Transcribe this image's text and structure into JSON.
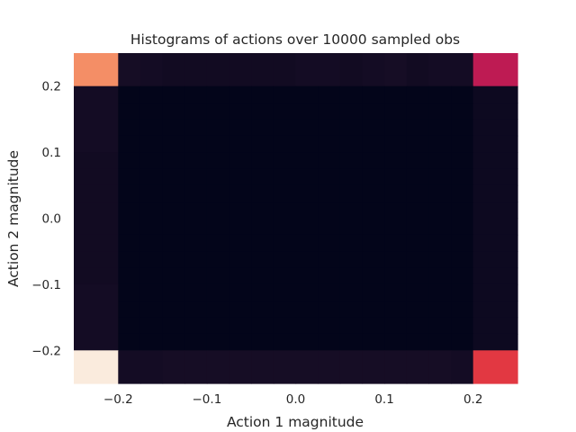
{
  "chart_data": {
    "type": "heatmap",
    "title": "Histograms of actions over 10000 sampled obs",
    "xlabel": "Action 1 magnitude",
    "ylabel": "Action 2 magnitude",
    "xlim": [
      -0.25,
      0.25
    ],
    "ylim": [
      -0.25,
      0.25
    ],
    "x_ticks": [
      -0.2,
      -0.1,
      0.0,
      0.1,
      0.2
    ],
    "x_tick_labels": [
      "−0.2",
      "−0.1",
      "0.0",
      "0.1",
      "0.2"
    ],
    "y_ticks": [
      -0.2,
      -0.1,
      0.0,
      0.1,
      0.2
    ],
    "y_tick_labels": [
      "−0.2",
      "−0.1",
      "0.0",
      "0.1",
      "0.2"
    ],
    "x_bin_edges": [
      -0.25,
      -0.2,
      -0.175,
      -0.15,
      -0.125,
      -0.1,
      -0.075,
      -0.05,
      -0.025,
      0.0,
      0.025,
      0.05,
      0.075,
      0.1,
      0.125,
      0.15,
      0.175,
      0.2,
      0.25
    ],
    "y_bin_edges": [
      -0.25,
      -0.2,
      -0.175,
      -0.15,
      -0.125,
      -0.1,
      -0.075,
      -0.05,
      -0.025,
      0.0,
      0.025,
      0.05,
      0.075,
      0.1,
      0.125,
      0.15,
      0.175,
      0.2,
      0.25
    ],
    "grid": false,
    "colormap": "rocket",
    "colormap_stops": [
      "#03051a",
      "#1d1029",
      "#4c1d4b",
      "#a11a5b",
      "#cb1b4f",
      "#e83f3f",
      "#f3825a",
      "#f6b48e",
      "#faebdd"
    ],
    "values_rows_top_to_bottom": [
      [
        0.78,
        0.09,
        0.08,
        0.07,
        0.07,
        0.07,
        0.07,
        0.07,
        0.07,
        0.08,
        0.08,
        0.07,
        0.08,
        0.09,
        0.07,
        0.08,
        0.08,
        0.46
      ],
      [
        0.08,
        0.0,
        0.0,
        0.0,
        0.0,
        0.0,
        0.0,
        0.0,
        0.0,
        0.0,
        0.0,
        0.0,
        0.0,
        0.0,
        0.0,
        0.0,
        0.0,
        0.05
      ],
      [
        0.08,
        0.0,
        0.0,
        0.0,
        0.0,
        0.0,
        0.0,
        0.0,
        0.0,
        0.0,
        0.0,
        0.0,
        0.0,
        0.0,
        0.0,
        0.0,
        0.0,
        0.05
      ],
      [
        0.08,
        0.0,
        0.0,
        0.0,
        0.0,
        0.0,
        0.0,
        0.0,
        0.0,
        0.0,
        0.0,
        0.0,
        0.0,
        0.0,
        0.0,
        0.0,
        0.0,
        0.05
      ],
      [
        0.08,
        0.0,
        0.0,
        0.0,
        0.0,
        0.0,
        0.0,
        0.0,
        0.0,
        0.0,
        0.0,
        0.0,
        0.0,
        0.0,
        0.0,
        0.0,
        0.0,
        0.05
      ],
      [
        0.07,
        0.0,
        0.0,
        0.0,
        0.0,
        0.0,
        0.0,
        0.0,
        0.0,
        0.0,
        0.0,
        0.0,
        0.0,
        0.0,
        0.0,
        0.0,
        0.0,
        0.05
      ],
      [
        0.07,
        0.0,
        0.0,
        0.0,
        0.0,
        0.0,
        0.0,
        0.0,
        0.0,
        0.0,
        0.0,
        0.0,
        0.0,
        0.0,
        0.0,
        0.0,
        0.0,
        0.05
      ],
      [
        0.07,
        0.0,
        0.0,
        0.0,
        0.0,
        0.0,
        0.0,
        0.0,
        0.0,
        0.0,
        0.0,
        0.0,
        0.0,
        0.0,
        0.0,
        0.0,
        0.0,
        0.05
      ],
      [
        0.07,
        0.0,
        0.0,
        0.0,
        0.0,
        0.0,
        0.0,
        0.0,
        0.0,
        0.0,
        0.0,
        0.0,
        0.0,
        0.0,
        0.0,
        0.0,
        0.0,
        0.05
      ],
      [
        0.07,
        0.0,
        0.0,
        0.0,
        0.0,
        0.0,
        0.0,
        0.0,
        0.0,
        0.0,
        0.0,
        0.0,
        0.0,
        0.0,
        0.0,
        0.0,
        0.0,
        0.05
      ],
      [
        0.07,
        0.0,
        0.0,
        0.0,
        0.0,
        0.0,
        0.0,
        0.0,
        0.0,
        0.0,
        0.0,
        0.0,
        0.0,
        0.0,
        0.0,
        0.0,
        0.0,
        0.05
      ],
      [
        0.07,
        0.0,
        0.0,
        0.0,
        0.0,
        0.0,
        0.0,
        0.0,
        0.0,
        0.0,
        0.0,
        0.0,
        0.0,
        0.0,
        0.0,
        0.0,
        0.0,
        0.05
      ],
      [
        0.07,
        0.0,
        0.0,
        0.0,
        0.0,
        0.0,
        0.0,
        0.0,
        0.0,
        0.0,
        0.0,
        0.0,
        0.0,
        0.0,
        0.0,
        0.0,
        0.0,
        0.05
      ],
      [
        0.08,
        0.0,
        0.0,
        0.0,
        0.0,
        0.0,
        0.0,
        0.0,
        0.0,
        0.0,
        0.0,
        0.0,
        0.0,
        0.0,
        0.0,
        0.0,
        0.0,
        0.05
      ],
      [
        0.08,
        0.0,
        0.0,
        0.0,
        0.0,
        0.0,
        0.0,
        0.0,
        0.0,
        0.0,
        0.0,
        0.0,
        0.0,
        0.0,
        0.0,
        0.0,
        0.0,
        0.05
      ],
      [
        0.08,
        0.0,
        0.0,
        0.0,
        0.0,
        0.0,
        0.0,
        0.0,
        0.0,
        0.0,
        0.0,
        0.0,
        0.0,
        0.0,
        0.0,
        0.0,
        0.0,
        0.05
      ],
      [
        0.08,
        0.0,
        0.0,
        0.0,
        0.0,
        0.0,
        0.0,
        0.0,
        0.0,
        0.0,
        0.0,
        0.0,
        0.0,
        0.0,
        0.0,
        0.0,
        0.0,
        0.05
      ],
      [
        1.0,
        0.08,
        0.08,
        0.09,
        0.09,
        0.09,
        0.09,
        0.09,
        0.09,
        0.09,
        0.09,
        0.09,
        0.09,
        0.09,
        0.09,
        0.09,
        0.08,
        0.6
      ]
    ]
  }
}
